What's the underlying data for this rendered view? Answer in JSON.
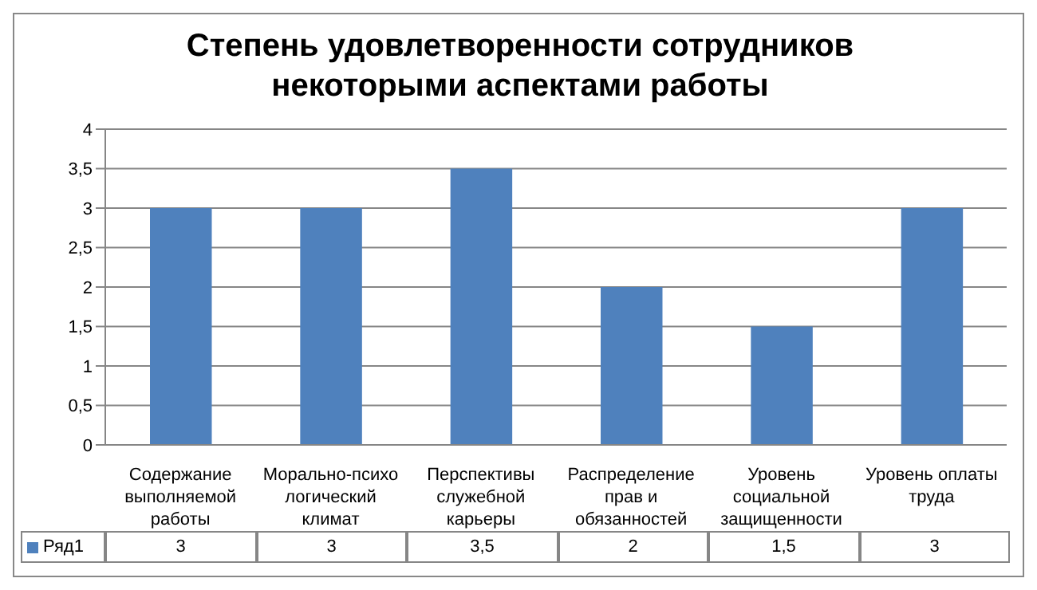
{
  "chart_data": {
    "type": "bar",
    "title": "Степень удовлетворенности сотрудников некоторыми аспектами работы",
    "categories": [
      "Содержание выполняемой работы",
      "Морально-психологический климат",
      "Перспективы служебной карьеры",
      "Распределение прав и обязанностей",
      "Уровень социальной защищенности",
      "Уровень оплаты труда"
    ],
    "series": [
      {
        "name": "Ряд1",
        "color": "#4f81bd",
        "values": [
          3,
          3,
          3.5,
          2,
          1.5,
          3
        ],
        "value_labels": [
          "3",
          "3",
          "3,5",
          "2",
          "1,5",
          "3"
        ]
      }
    ],
    "ylim": [
      0,
      4
    ],
    "yticks": [
      0,
      {
        "value": 0.5,
        "label": "0,5"
      },
      1,
      {
        "value": 1.5,
        "label": "1,5"
      },
      2,
      {
        "value": 2.5,
        "label": "2,5"
      },
      3,
      {
        "value": 3.5,
        "label": "3,5"
      },
      4
    ],
    "grid": "y",
    "legend": "bottom"
  }
}
